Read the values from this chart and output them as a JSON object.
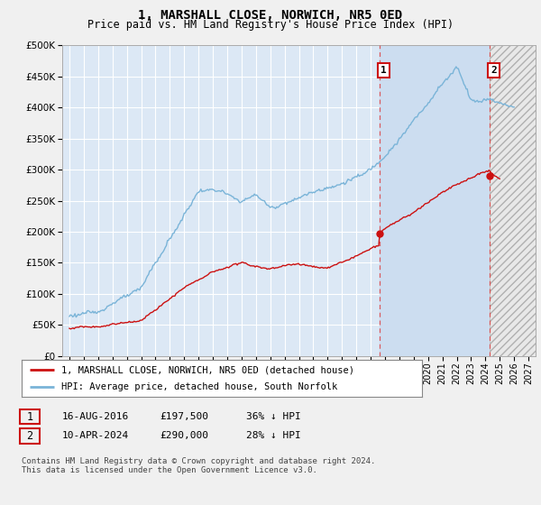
{
  "title": "1, MARSHALL CLOSE, NORWICH, NR5 0ED",
  "subtitle": "Price paid vs. HM Land Registry's House Price Index (HPI)",
  "ytick_values": [
    0,
    50000,
    100000,
    150000,
    200000,
    250000,
    300000,
    350000,
    400000,
    450000,
    500000
  ],
  "ylim": [
    0,
    500000
  ],
  "xlim_start": 1994.5,
  "xlim_end": 2027.5,
  "hpi_color": "#7ab4d8",
  "price_color": "#cc1111",
  "transaction1_date": 2016.62,
  "transaction1_price": 197500,
  "transaction1_label": "1",
  "transaction2_date": 2024.27,
  "transaction2_price": 290000,
  "transaction2_label": "2",
  "blue_shaded_start": 2016.62,
  "blue_shaded_end": 2024.27,
  "hatch_start": 2024.27,
  "hatch_end": 2027.5,
  "legend_property": "1, MARSHALL CLOSE, NORWICH, NR5 0ED (detached house)",
  "legend_hpi": "HPI: Average price, detached house, South Norfolk",
  "table_row1_num": "1",
  "table_row1_date": "16-AUG-2016",
  "table_row1_price": "£197,500",
  "table_row1_hpi": "36% ↓ HPI",
  "table_row2_num": "2",
  "table_row2_date": "10-APR-2024",
  "table_row2_price": "£290,000",
  "table_row2_hpi": "28% ↓ HPI",
  "footer": "Contains HM Land Registry data © Crown copyright and database right 2024.\nThis data is licensed under the Open Government Licence v3.0.",
  "plot_bg": "#dce8f5",
  "outer_bg": "#f0f0f0",
  "grid_color": "#ffffff",
  "blue_shade_color": "#ccddf0",
  "hatch_bg_color": "#e8e8e8",
  "title_fontsize": 10,
  "subtitle_fontsize": 8.5,
  "tick_fontsize": 7.5
}
